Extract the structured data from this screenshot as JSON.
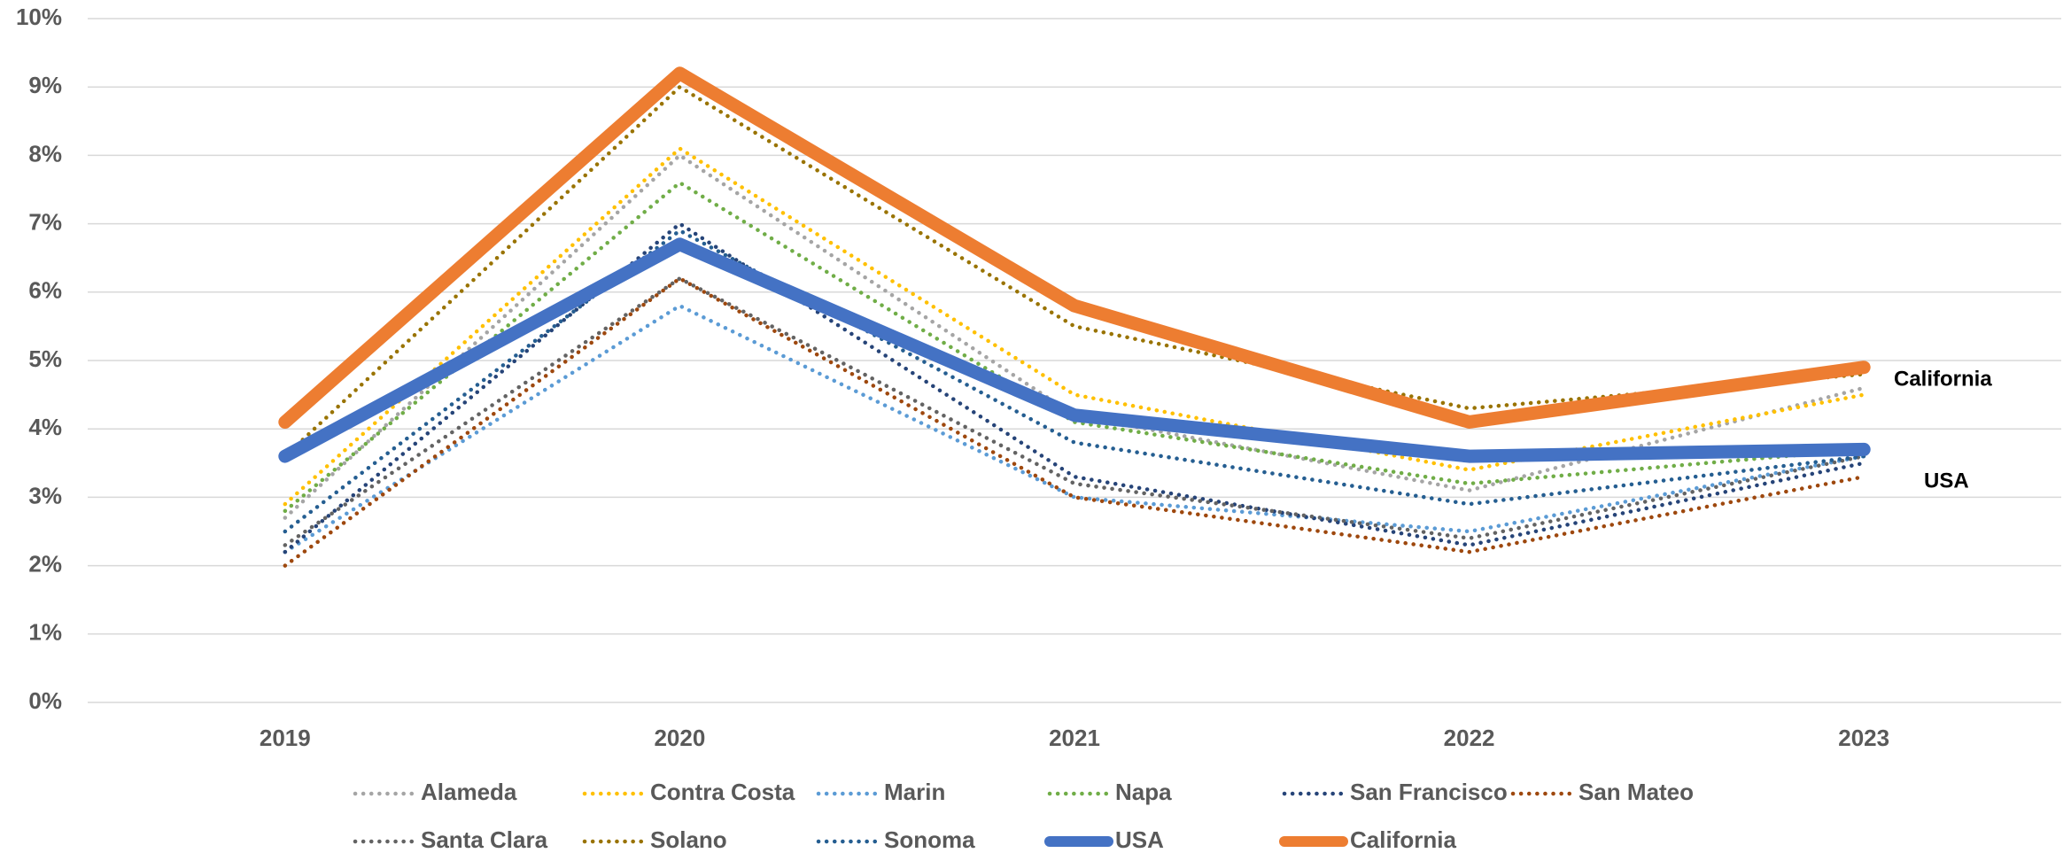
{
  "chart_data": {
    "type": "line",
    "categories": [
      "2019",
      "2020",
      "2021",
      "2022",
      "2023"
    ],
    "ylim": [
      0,
      10
    ],
    "yticks": [
      {
        "value": 0,
        "label": "0%"
      },
      {
        "value": 1,
        "label": "1%"
      },
      {
        "value": 2,
        "label": "2%"
      },
      {
        "value": 3,
        "label": "3%"
      },
      {
        "value": 4,
        "label": "4%"
      },
      {
        "value": 5,
        "label": "5%"
      },
      {
        "value": 6,
        "label": "6%"
      },
      {
        "value": 7,
        "label": "7%"
      },
      {
        "value": 8,
        "label": "8%"
      },
      {
        "value": 9,
        "label": "9%"
      },
      {
        "value": 10,
        "label": "10%"
      }
    ],
    "grid": true,
    "legend": "bottom",
    "annotations": [
      "California",
      "USA"
    ],
    "series": [
      {
        "name": "Alameda",
        "color": "#a5a5a5",
        "style": "dotted",
        "values": [
          2.7,
          8.0,
          4.2,
          3.1,
          4.6
        ]
      },
      {
        "name": "Contra Costa",
        "color": "#ffc000",
        "style": "dotted",
        "values": [
          2.9,
          8.1,
          4.5,
          3.4,
          4.5
        ]
      },
      {
        "name": "Marin",
        "color": "#5b9bd5",
        "style": "dotted",
        "values": [
          2.2,
          5.8,
          3.0,
          2.5,
          3.6
        ]
      },
      {
        "name": "Napa",
        "color": "#70ad47",
        "style": "dotted",
        "values": [
          2.8,
          7.6,
          4.1,
          3.2,
          3.7
        ]
      },
      {
        "name": "San Francisco",
        "color": "#264478",
        "style": "dotted",
        "values": [
          2.2,
          7.0,
          3.3,
          2.3,
          3.5
        ]
      },
      {
        "name": "San Mateo",
        "color": "#9e480e",
        "style": "dotted",
        "values": [
          2.0,
          6.2,
          3.0,
          2.2,
          3.3
        ]
      },
      {
        "name": "Santa Clara",
        "color": "#636363",
        "style": "dotted",
        "values": [
          2.3,
          6.2,
          3.2,
          2.4,
          3.6
        ]
      },
      {
        "name": "Solano",
        "color": "#997300",
        "style": "dotted",
        "values": [
          3.6,
          9.0,
          5.5,
          4.3,
          4.8
        ]
      },
      {
        "name": "Sonoma",
        "color": "#255e91",
        "style": "dotted",
        "values": [
          2.5,
          6.9,
          3.8,
          2.9,
          3.6
        ]
      },
      {
        "name": "USA",
        "color": "#4472c4",
        "style": "solid",
        "values": [
          3.6,
          6.7,
          4.2,
          3.6,
          3.7
        ]
      },
      {
        "name": "California",
        "color": "#ed7d31",
        "style": "solid",
        "values": [
          4.1,
          9.2,
          5.8,
          4.1,
          4.9
        ]
      }
    ]
  }
}
